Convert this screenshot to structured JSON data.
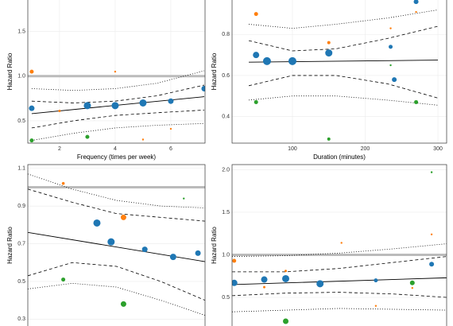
{
  "chart_data": [
    {
      "type": "scatter",
      "x_label": "Frequency (times per week)",
      "y_label": "Hazard Ratio",
      "xlim": [
        0.86,
        7.23
      ],
      "ylim": [
        0.25,
        1.87
      ],
      "xticks": [
        2,
        4,
        6
      ],
      "yticks": [
        0.5,
        {
          "value": 1,
          "label": "1.0"
        },
        1.5
      ],
      "grid": true,
      "reference_line": 1,
      "series": [
        {
          "color": "#1f77b4",
          "x": [
            1,
            3,
            4,
            5,
            6,
            7.2
          ],
          "values": [
            0.64,
            0.67,
            0.67,
            0.7,
            0.72,
            0.86
          ],
          "sizes": [
            3.5,
            4.5,
            4.5,
            4.5,
            3.5,
            3.5
          ]
        },
        {
          "color": "#ff7f0e",
          "x": [
            1,
            2,
            4,
            5,
            6
          ],
          "values": [
            1.05,
            0.61,
            1.05,
            0.29,
            0.41
          ],
          "sizes": [
            2.5,
            1.5,
            1.2,
            1.2,
            1.2
          ]
        },
        {
          "color": "#2ca02c",
          "x": [
            1,
            3
          ],
          "values": [
            0.28,
            0.32
          ],
          "sizes": [
            2.5,
            2.5
          ]
        }
      ],
      "lines": [
        {
          "style": "solid",
          "x": [
            1,
            7.2
          ],
          "values": [
            0.58,
            0.77
          ]
        },
        {
          "style": "dashed",
          "x": [
            1,
            2.5,
            4,
            5.5,
            7.2
          ],
          "values": [
            0.72,
            0.7,
            0.72,
            0.78,
            0.9
          ]
        },
        {
          "style": "dashed",
          "x": [
            1,
            2.5,
            4,
            5.5,
            7.2
          ],
          "values": [
            0.42,
            0.5,
            0.56,
            0.59,
            0.62
          ]
        },
        {
          "style": "dotted",
          "x": [
            1,
            2.5,
            4,
            5.5,
            7.2
          ],
          "values": [
            0.86,
            0.84,
            0.86,
            0.92,
            1.06
          ]
        },
        {
          "style": "dotted",
          "x": [
            1,
            2.5,
            4,
            5.5,
            7.2
          ],
          "values": [
            0.28,
            0.36,
            0.42,
            0.45,
            0.47
          ]
        }
      ]
    },
    {
      "type": "scatter",
      "x_label": "Duration (minutes)",
      "y_label": "Hazard Ratio",
      "xlim": [
        17,
        312
      ],
      "ylim": [
        0.27,
        0.976
      ],
      "xticks": [
        100,
        200,
        300
      ],
      "yticks": [
        0.4,
        0.6,
        0.8
      ],
      "grid": true,
      "series": [
        {
          "color": "#1f77b4",
          "x": [
            50,
            65,
            100,
            150,
            235,
            240,
            270
          ],
          "values": [
            0.7,
            0.67,
            0.67,
            0.71,
            0.74,
            0.58,
            0.96
          ],
          "sizes": [
            4,
            5,
            5,
            4.5,
            2.5,
            3,
            3
          ]
        },
        {
          "color": "#ff7f0e",
          "x": [
            50,
            150,
            235,
            270
          ],
          "values": [
            0.9,
            0.76,
            0.83,
            0.91
          ],
          "sizes": [
            2.5,
            2,
            1.2,
            1.2
          ]
        },
        {
          "color": "#2ca02c",
          "x": [
            50,
            150,
            235,
            270
          ],
          "values": [
            0.47,
            0.29,
            0.65,
            0.47
          ],
          "sizes": [
            2.5,
            2,
            1.2,
            2.5
          ]
        }
      ],
      "lines": [
        {
          "style": "solid",
          "x": [
            40,
            300
          ],
          "values": [
            0.665,
            0.675
          ]
        },
        {
          "style": "dashed",
          "x": [
            40,
            100,
            160,
            230,
            300
          ],
          "values": [
            0.77,
            0.72,
            0.73,
            0.78,
            0.84
          ]
        },
        {
          "style": "dashed",
          "x": [
            40,
            100,
            160,
            230,
            300
          ],
          "values": [
            0.55,
            0.6,
            0.6,
            0.56,
            0.49
          ]
        },
        {
          "style": "dotted",
          "x": [
            40,
            100,
            160,
            230,
            300
          ],
          "values": [
            0.85,
            0.83,
            0.85,
            0.88,
            0.92
          ]
        },
        {
          "style": "dotted",
          "x": [
            40,
            100,
            160,
            230,
            300
          ],
          "values": [
            0.48,
            0.5,
            0.5,
            0.48,
            0.455
          ]
        }
      ]
    },
    {
      "type": "scatter",
      "y_label": "Hazard Ratio",
      "xlim": [
        0,
        10
      ],
      "ylim": [
        0.255,
        1.12
      ],
      "yticks": [
        0.3,
        0.5,
        0.7,
        0.9,
        1.1
      ],
      "grid": true,
      "reference_line": 1,
      "series": [
        {
          "color": "#1f77b4",
          "x": [
            3.9,
            4.7,
            6.6,
            8.2,
            9.6
          ],
          "values": [
            0.81,
            0.71,
            0.67,
            0.63,
            0.65
          ],
          "sizes": [
            4.5,
            4.5,
            3.5,
            4,
            3.5
          ]
        },
        {
          "color": "#ff7f0e",
          "x": [
            2.0,
            5.4
          ],
          "values": [
            1.02,
            0.84
          ],
          "sizes": [
            1.8,
            3.5
          ]
        },
        {
          "color": "#2ca02c",
          "x": [
            2.0,
            5.4,
            8.8
          ],
          "values": [
            0.51,
            0.38,
            0.94
          ],
          "sizes": [
            2.5,
            3.5,
            1.2
          ]
        }
      ],
      "lines": [
        {
          "style": "solid",
          "x": [
            0,
            10
          ],
          "values": [
            0.76,
            0.605
          ]
        },
        {
          "style": "dashed",
          "x": [
            0,
            2.5,
            5,
            7.5,
            10
          ],
          "values": [
            0.99,
            0.92,
            0.86,
            0.84,
            0.82
          ]
        },
        {
          "style": "dashed",
          "x": [
            0,
            2.5,
            5,
            7.5,
            10
          ],
          "values": [
            0.53,
            0.6,
            0.58,
            0.5,
            0.4
          ]
        },
        {
          "style": "dotted",
          "x": [
            0,
            2.5,
            5,
            7.5,
            10
          ],
          "values": [
            1.07,
            0.99,
            0.93,
            0.9,
            0.89
          ]
        },
        {
          "style": "dotted",
          "x": [
            0,
            2.5,
            5,
            7.5,
            10
          ],
          "values": [
            0.46,
            0.49,
            0.47,
            0.4,
            0.32
          ]
        }
      ]
    },
    {
      "type": "scatter",
      "y_label": "Hazard Ratio",
      "xlim": [
        0,
        10
      ],
      "ylim": [
        0.145,
        2.06
      ],
      "yticks": [
        0.5,
        {
          "value": 1,
          "label": "1.0"
        },
        1.5,
        {
          "value": 2,
          "label": "2.0"
        }
      ],
      "grid": true,
      "reference_line": 1,
      "series": [
        {
          "color": "#1f77b4",
          "x": [
            0.1,
            1.5,
            2.5,
            4.1,
            6.7,
            9.3
          ],
          "values": [
            0.67,
            0.71,
            0.72,
            0.66,
            0.7,
            0.89
          ],
          "sizes": [
            4,
            4,
            4.5,
            4.5,
            2.5,
            3
          ]
        },
        {
          "color": "#ff7f0e",
          "x": [
            0.1,
            1.5,
            2.5,
            5.1,
            6.7,
            8.4,
            9.3
          ],
          "values": [
            0.93,
            0.62,
            0.81,
            1.14,
            0.4,
            0.61,
            1.24
          ],
          "sizes": [
            2.5,
            1.5,
            1.5,
            1.2,
            1.2,
            1.2,
            1.2
          ]
        },
        {
          "color": "#2ca02c",
          "x": [
            2.5,
            8.4,
            9.3
          ],
          "values": [
            0.22,
            0.67,
            1.97
          ],
          "sizes": [
            3.5,
            3,
            1.2
          ]
        }
      ],
      "lines": [
        {
          "style": "solid",
          "x": [
            0,
            10
          ],
          "values": [
            0.65,
            0.73
          ]
        },
        {
          "style": "dashed",
          "x": [
            0,
            2.5,
            5,
            7.5,
            10
          ],
          "values": [
            0.8,
            0.8,
            0.84,
            0.91,
            0.98
          ]
        },
        {
          "style": "dashed",
          "x": [
            0,
            2.5,
            5,
            7.5,
            10
          ],
          "values": [
            0.52,
            0.55,
            0.56,
            0.54,
            0.5
          ]
        },
        {
          "style": "dotted",
          "x": [
            0,
            2.5,
            5,
            7.5,
            10
          ],
          "values": [
            0.98,
            0.99,
            1.02,
            1.07,
            1.13
          ]
        },
        {
          "style": "dotted",
          "x": [
            0,
            2.5,
            5,
            7.5,
            10
          ],
          "values": [
            0.33,
            0.35,
            0.37,
            0.36,
            0.35
          ]
        }
      ]
    }
  ]
}
